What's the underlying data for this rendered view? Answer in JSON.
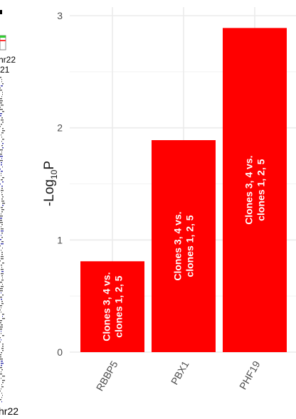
{
  "chart_data": {
    "type": "bar",
    "categories": [
      "RBBP5",
      "PBX1",
      "PHF19"
    ],
    "values": [
      0.81,
      1.89,
      2.89
    ],
    "bar_labels": [
      "Clones 3, 4 vs. clones 1, 2, 5",
      "Clones 3, 4 vs. clones 1, 2, 5",
      "Clones 3, 4 vs. clones 1, 2, 5"
    ],
    "bar_label_lines": [
      [
        "Clones 3, 4 vs.",
        "clones 1, 2, 5"
      ],
      [
        "Clones 3, 4 vs.",
        "clones 1, 2, 5"
      ],
      [
        "Clones 3, 4 vs.",
        "clones 1, 2, 5"
      ]
    ],
    "ylabel_base": "-Log",
    "ylabel_sub": "10",
    "ylabel_tail": "P",
    "ylim": [
      0,
      3
    ],
    "yticks": [
      0,
      1,
      2,
      3
    ],
    "grid": true,
    "bar_color": "#ff0000"
  },
  "cropped_neighbor_panel": {
    "label_top_1": "hr22",
    "label_top_2": "21",
    "label_bottom": "hr22"
  }
}
